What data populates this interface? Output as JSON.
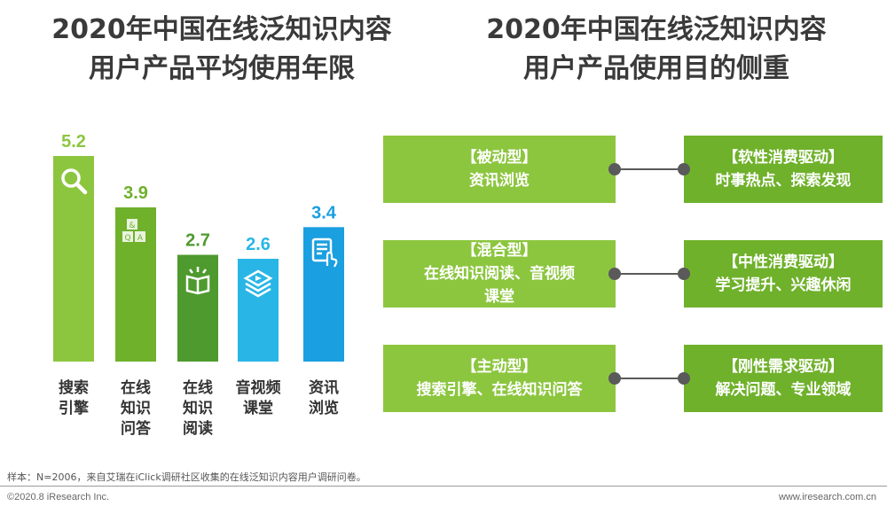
{
  "left_title": {
    "line1": "2020年中国在线泛知识内容",
    "line2": "用户产品平均使用年限"
  },
  "right_title": {
    "line1": "2020年中国在线泛知识内容",
    "line2": "用户产品使用目的侧重"
  },
  "chart_data": {
    "type": "bar",
    "title": "2020年中国在线泛知识内容用户产品平均使用年限",
    "categories": [
      "搜索引擎",
      "在线知识问答",
      "在线知识阅读",
      "音视频课堂",
      "资讯浏览"
    ],
    "category_lines": [
      [
        "搜索",
        "引擎"
      ],
      [
        "在线",
        "知识",
        "问答"
      ],
      [
        "在线",
        "知识",
        "阅读"
      ],
      [
        "音视频",
        "课堂"
      ],
      [
        "资讯",
        "浏览"
      ]
    ],
    "values": [
      5.2,
      3.9,
      2.7,
      2.6,
      3.4
    ],
    "value_labels": [
      "5.2",
      "3.9",
      "2.7",
      "2.6",
      "3.4"
    ],
    "colors": [
      "#8cc63f",
      "#6fb12b",
      "#4e9a2e",
      "#29b6e6",
      "#1a9fe0"
    ],
    "icons": [
      "search-icon",
      "qa-blocks-icon",
      "open-book-icon",
      "video-layers-icon",
      "touch-document-icon"
    ],
    "ylim": [
      0,
      5.2
    ],
    "grid": false,
    "legend": "none"
  },
  "purposes": [
    {
      "type_label": "【被动型】",
      "type_desc": [
        "资讯浏览"
      ],
      "driver_label": "【软性消费驱动】",
      "driver_desc": "时事热点、探索发现"
    },
    {
      "type_label": "【混合型】",
      "type_desc": [
        "在线知识阅读、音视频",
        "课堂"
      ],
      "driver_label": "【中性消费驱动】",
      "driver_desc": "学习提升、兴趣休闲"
    },
    {
      "type_label": "【主动型】",
      "type_desc": [
        "搜索引擎、在线知识问答"
      ],
      "driver_label": "【刚性需求驱动】",
      "driver_desc": "解决问题、专业领域"
    }
  ],
  "source_note": "样本：N=2006，来自艾瑞在iClick调研社区收集的在线泛知识内容用户调研问卷。",
  "footer_left": "©2020.8 iResearch Inc.",
  "footer_right": "www.iresearch.com.cn"
}
